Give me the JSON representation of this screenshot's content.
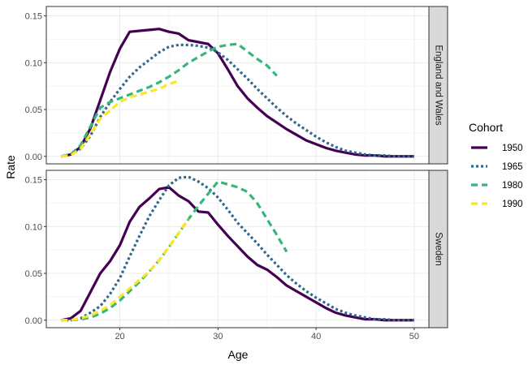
{
  "chart_data": {
    "type": "line",
    "xlabel": "Age",
    "ylabel": "Rate",
    "xlim": [
      12.5,
      51.5
    ],
    "ylim": [
      -0.008,
      0.16
    ],
    "x_ticks": [
      20,
      30,
      40,
      50
    ],
    "y_ticks": [
      0.0,
      0.05,
      0.1,
      0.15
    ],
    "x_tick_labels": [
      "20",
      "30",
      "40",
      "50"
    ],
    "y_tick_labels": [
      "0.00",
      "0.05",
      "0.10",
      "0.15"
    ],
    "grid": true,
    "legend": {
      "title": "Cohort",
      "position": "right",
      "entries": [
        "1950",
        "1965",
        "1980",
        "1990"
      ]
    },
    "series_styles": {
      "1950": {
        "color": "#440154",
        "dash": "solid"
      },
      "1965": {
        "color": "#31688e",
        "dash": "dotted"
      },
      "1980": {
        "color": "#35b779",
        "dash": "dashed"
      },
      "1990": {
        "color": "#fde725",
        "dash": "dashed"
      }
    },
    "panels": [
      {
        "label": "England and Wales",
        "series": [
          {
            "name": "1950",
            "x": [
              14,
              15,
              16,
              17,
              18,
              19,
              20,
              21,
              22,
              23,
              24,
              25,
              26,
              27,
              28,
              29,
              30,
              31,
              32,
              33,
              34,
              35,
              36,
              37,
              38,
              39,
              40,
              41,
              42,
              43,
              44,
              45,
              46,
              47,
              48,
              49,
              50
            ],
            "y": [
              0.0,
              0.002,
              0.01,
              0.03,
              0.06,
              0.09,
              0.115,
              0.133,
              0.134,
              0.135,
              0.136,
              0.133,
              0.131,
              0.124,
              0.122,
              0.12,
              0.11,
              0.093,
              0.075,
              0.062,
              0.052,
              0.043,
              0.036,
              0.029,
              0.023,
              0.017,
              0.013,
              0.009,
              0.006,
              0.004,
              0.002,
              0.001,
              0.001,
              0.0,
              0.0,
              0.0,
              0.0
            ]
          },
          {
            "name": "1965",
            "x": [
              14,
              15,
              16,
              17,
              18,
              19,
              20,
              21,
              22,
              23,
              24,
              25,
              26,
              27,
              28,
              29,
              30,
              31,
              32,
              33,
              34,
              35,
              36,
              37,
              38,
              39,
              40,
              41,
              42,
              43,
              44,
              45,
              46,
              47,
              48,
              49,
              50
            ],
            "y": [
              0.0,
              0.002,
              0.008,
              0.022,
              0.042,
              0.058,
              0.072,
              0.085,
              0.095,
              0.103,
              0.111,
              0.117,
              0.119,
              0.119,
              0.118,
              0.116,
              0.111,
              0.103,
              0.093,
              0.083,
              0.072,
              0.062,
              0.052,
              0.043,
              0.035,
              0.028,
              0.021,
              0.015,
              0.01,
              0.006,
              0.004,
              0.002,
              0.001,
              0.001,
              0.0,
              0.0,
              0.0
            ]
          },
          {
            "name": "1980",
            "x": [
              14,
              15,
              16,
              17,
              18,
              19,
              20,
              21,
              22,
              23,
              24,
              25,
              26,
              27,
              28,
              29,
              30,
              31,
              32,
              33,
              34,
              35,
              36
            ],
            "y": [
              0.0,
              0.002,
              0.012,
              0.032,
              0.052,
              0.058,
              0.062,
              0.066,
              0.07,
              0.074,
              0.079,
              0.085,
              0.092,
              0.1,
              0.106,
              0.112,
              0.117,
              0.119,
              0.12,
              0.112,
              0.104,
              0.097,
              0.086
            ]
          },
          {
            "name": "1990",
            "x": [
              14,
              15,
              16,
              17,
              18,
              19,
              20,
              21,
              22,
              23,
              24,
              25,
              26
            ],
            "y": [
              0.0,
              0.001,
              0.008,
              0.024,
              0.04,
              0.049,
              0.058,
              0.063,
              0.066,
              0.069,
              0.072,
              0.077,
              0.081
            ]
          }
        ]
      },
      {
        "label": "Sweden",
        "series": [
          {
            "name": "1950",
            "x": [
              14,
              15,
              16,
              17,
              18,
              19,
              20,
              21,
              22,
              23,
              24,
              25,
              26,
              27,
              28,
              29,
              30,
              31,
              32,
              33,
              34,
              35,
              36,
              37,
              38,
              39,
              40,
              41,
              42,
              43,
              44,
              45,
              46,
              47,
              48,
              49,
              50
            ],
            "y": [
              0.0,
              0.002,
              0.01,
              0.03,
              0.05,
              0.063,
              0.08,
              0.105,
              0.121,
              0.13,
              0.14,
              0.142,
              0.133,
              0.127,
              0.116,
              0.115,
              0.102,
              0.09,
              0.079,
              0.068,
              0.059,
              0.054,
              0.046,
              0.037,
              0.031,
              0.025,
              0.019,
              0.013,
              0.008,
              0.005,
              0.003,
              0.001,
              0.001,
              0.0,
              0.0,
              0.0,
              0.0
            ]
          },
          {
            "name": "1965",
            "x": [
              14,
              15,
              16,
              17,
              18,
              19,
              20,
              21,
              22,
              23,
              24,
              25,
              26,
              27,
              28,
              29,
              30,
              31,
              32,
              33,
              34,
              35,
              36,
              37,
              38,
              39,
              40,
              41,
              42,
              43,
              44,
              45,
              46,
              47,
              48,
              49,
              50
            ],
            "y": [
              0.0,
              0.0,
              0.002,
              0.008,
              0.015,
              0.028,
              0.045,
              0.068,
              0.09,
              0.111,
              0.128,
              0.144,
              0.152,
              0.153,
              0.148,
              0.141,
              0.131,
              0.118,
              0.104,
              0.093,
              0.082,
              0.07,
              0.059,
              0.048,
              0.039,
              0.031,
              0.024,
              0.018,
              0.012,
              0.008,
              0.005,
              0.003,
              0.001,
              0.001,
              0.0,
              0.0,
              0.0
            ]
          },
          {
            "name": "1980",
            "x": [
              14,
              15,
              16,
              17,
              18,
              19,
              20,
              21,
              22,
              23,
              24,
              25,
              26,
              27,
              28,
              29,
              30,
              31,
              32,
              33,
              34,
              35,
              36,
              37
            ],
            "y": [
              0.0,
              0.0,
              0.001,
              0.003,
              0.007,
              0.013,
              0.021,
              0.031,
              0.041,
              0.052,
              0.064,
              0.078,
              0.093,
              0.108,
              0.122,
              0.135,
              0.148,
              0.145,
              0.142,
              0.137,
              0.125,
              0.108,
              0.091,
              0.073
            ]
          },
          {
            "name": "1990",
            "x": [
              14,
              15,
              16,
              17,
              18,
              19,
              20,
              21,
              22,
              23,
              24,
              25,
              26,
              27
            ],
            "y": [
              0.0,
              0.0,
              0.002,
              0.005,
              0.01,
              0.016,
              0.025,
              0.034,
              0.043,
              0.052,
              0.064,
              0.078,
              0.093,
              0.108
            ]
          }
        ]
      }
    ]
  }
}
